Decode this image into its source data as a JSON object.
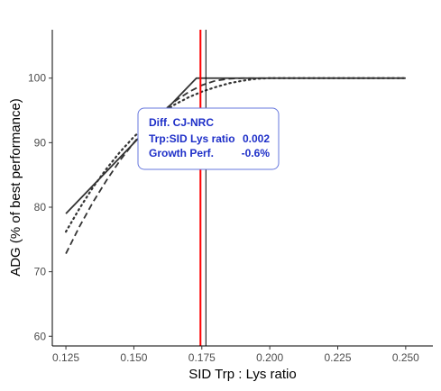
{
  "chart_data": {
    "type": "line",
    "xlabel": "SID Trp : Lys ratio",
    "ylabel": "ADG (% of best performance)",
    "xlim": [
      0.12,
      0.26
    ],
    "ylim": [
      58.5,
      107.5
    ],
    "xticks": [
      0.125,
      0.15,
      0.175,
      0.2,
      0.225,
      0.25
    ],
    "xtick_labels": [
      "0.125",
      "0.150",
      "0.175",
      "0.200",
      "0.225",
      "0.250"
    ],
    "yticks": [
      60,
      70,
      80,
      90,
      100
    ],
    "ytick_labels": [
      "60",
      "70",
      "80",
      "90",
      "100"
    ],
    "grid": false,
    "series": [
      {
        "style": "solid",
        "color": "#333333",
        "points": [
          [
            0.125,
            79.0
          ],
          [
            0.173,
            100.0
          ],
          [
            0.25,
            100.0
          ]
        ]
      },
      {
        "style": "dashed",
        "color": "#333333",
        "points": [
          [
            0.125,
            72.8
          ],
          [
            0.13,
            77.0
          ],
          [
            0.135,
            80.8
          ],
          [
            0.14,
            84.2
          ],
          [
            0.145,
            87.3
          ],
          [
            0.15,
            90.0
          ],
          [
            0.155,
            92.5
          ],
          [
            0.16,
            94.6
          ],
          [
            0.165,
            96.4
          ],
          [
            0.17,
            97.8
          ],
          [
            0.175,
            98.9
          ],
          [
            0.18,
            99.6
          ],
          [
            0.185,
            99.9
          ],
          [
            0.19,
            100.0
          ],
          [
            0.25,
            100.0
          ]
        ]
      },
      {
        "style": "dotted",
        "color": "#333333",
        "points": [
          [
            0.125,
            76.2
          ],
          [
            0.13,
            79.8
          ],
          [
            0.135,
            83.1
          ],
          [
            0.14,
            86.0
          ],
          [
            0.145,
            88.6
          ],
          [
            0.15,
            90.9
          ],
          [
            0.155,
            92.8
          ],
          [
            0.16,
            94.5
          ],
          [
            0.165,
            95.9
          ],
          [
            0.17,
            97.0
          ],
          [
            0.175,
            97.9
          ],
          [
            0.18,
            98.6
          ],
          [
            0.185,
            99.2
          ],
          [
            0.19,
            99.6
          ],
          [
            0.195,
            99.9
          ],
          [
            0.2,
            100.0
          ],
          [
            0.25,
            100.0
          ]
        ]
      }
    ],
    "vlines": [
      {
        "x": 0.1745,
        "color": "#ff0000",
        "width": 2
      },
      {
        "x": 0.1765,
        "color": "#000000",
        "width": 1
      }
    ],
    "annotation": {
      "title": "Diff. CJ-NRC",
      "rows": [
        {
          "label": "Trp:SID Lys ratio",
          "value": "0.002"
        },
        {
          "label": "Growth Perf.",
          "value": "-0.6%"
        }
      ],
      "text_color": "#1e2fc8",
      "border_color": "#6677dd"
    }
  }
}
